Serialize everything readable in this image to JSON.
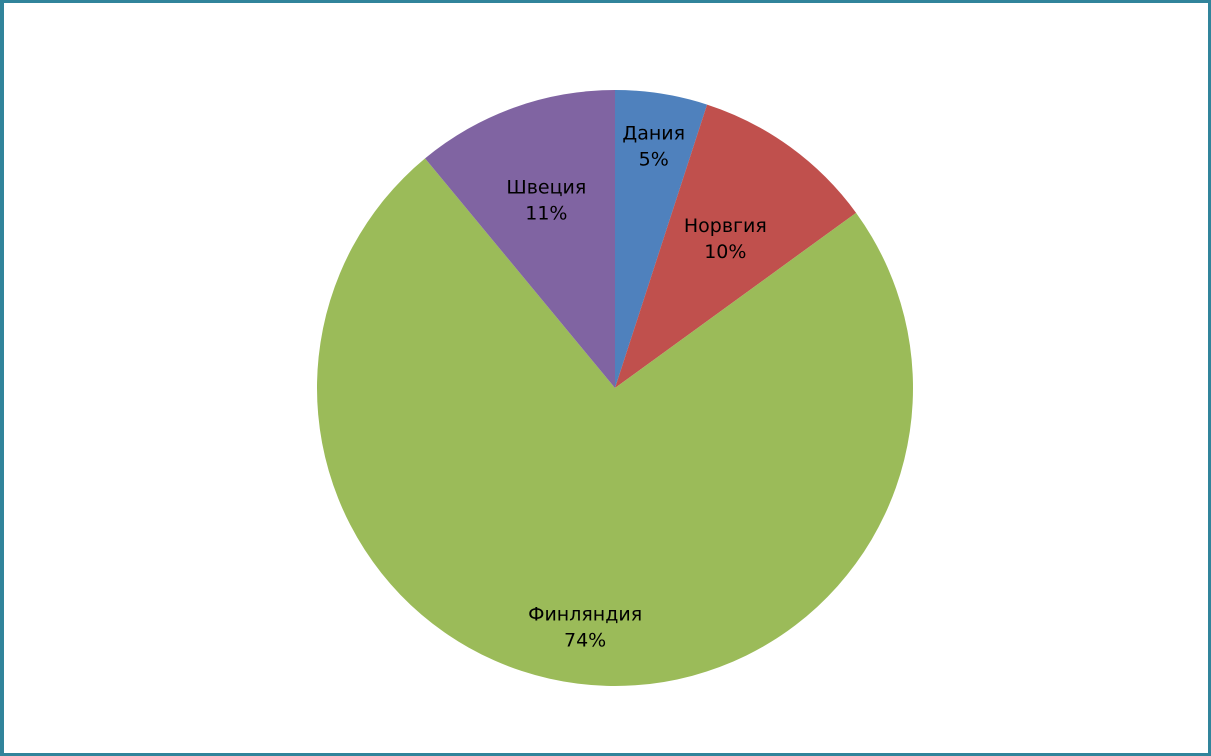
{
  "chart_data": {
    "type": "pie",
    "title": "",
    "legend": "none",
    "start_angle_deg": 0,
    "slices": [
      {
        "name": "Дания",
        "value": 5,
        "label": "5%",
        "color": "#4f81bd"
      },
      {
        "name": "Норвгия",
        "value": 10,
        "label": "10%",
        "color": "#c0504d"
      },
      {
        "name": "Финляндия",
        "value": 74,
        "label": "74%",
        "color": "#9bbb59"
      },
      {
        "name": "Швеция",
        "value": 11,
        "label": "11%",
        "color": "#8064a2"
      }
    ]
  },
  "frame": {
    "border_color": "#31849b"
  }
}
